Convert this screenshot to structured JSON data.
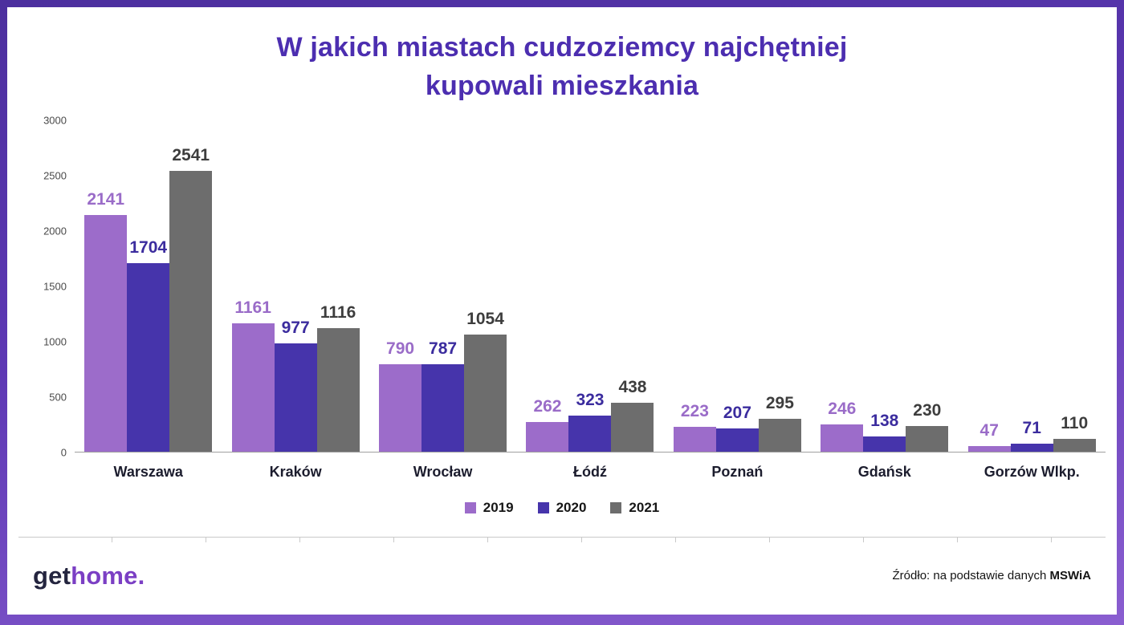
{
  "title": {
    "line1": "W jakich miastach cudzoziemcy najchętniej",
    "line2": "kupowali mieszkania",
    "color": "#4c2eb0"
  },
  "chart_data": {
    "type": "bar",
    "title": "W jakich miastach cudzoziemcy najchętniej kupowali mieszkania",
    "categories": [
      "Warszawa",
      "Kraków",
      "Wrocław",
      "Łódź",
      "Poznań",
      "Gdańsk",
      "Gorzów Wlkp."
    ],
    "series": [
      {
        "name": "2019",
        "color": "#9c6cca",
        "label_color": "#9a6cc8",
        "values": [
          2141,
          1161,
          790,
          262,
          223,
          246,
          47
        ]
      },
      {
        "name": "2020",
        "color": "#4634ab",
        "label_color": "#3b2c9e",
        "values": [
          1704,
          977,
          787,
          323,
          207,
          138,
          71
        ]
      },
      {
        "name": "2021",
        "color": "#6d6d6d",
        "label_color": "#3d3d3d",
        "values": [
          2541,
          1116,
          1054,
          438,
          295,
          230,
          110
        ]
      }
    ],
    "ylim": [
      0,
      3000
    ],
    "yticks": [
      0,
      500,
      1000,
      1500,
      2000,
      2500,
      3000
    ],
    "grid": false,
    "legend_position": "bottom",
    "xlabel": "",
    "ylabel": ""
  },
  "footer": {
    "logo_get": "get",
    "logo_home": "home.",
    "source_prefix": "Źródło: na podstawie danych ",
    "source_bold": "MSWiA"
  }
}
